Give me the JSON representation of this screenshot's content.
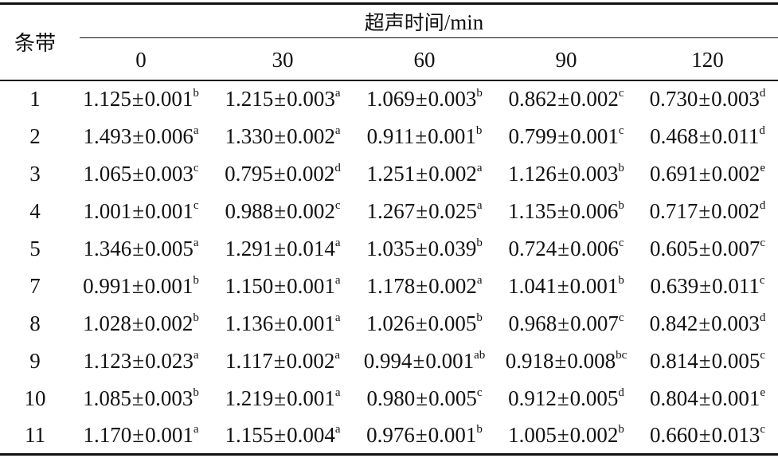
{
  "header": {
    "stub": "条带",
    "group_cjk": "超声时间",
    "group_unit": "/min",
    "columns": [
      "0",
      "30",
      "60",
      "90",
      "120"
    ]
  },
  "rows": [
    {
      "label": "1",
      "cells": [
        {
          "mean": "1.125",
          "sd": "0.001",
          "sup": "b"
        },
        {
          "mean": "1.215",
          "sd": "0.003",
          "sup": "a"
        },
        {
          "mean": "1.069",
          "sd": "0.003",
          "sup": "b"
        },
        {
          "mean": "0.862",
          "sd": "0.002",
          "sup": "c"
        },
        {
          "mean": "0.730",
          "sd": "0.003",
          "sup": "d"
        }
      ]
    },
    {
      "label": "2",
      "cells": [
        {
          "mean": "1.493",
          "sd": "0.006",
          "sup": "a"
        },
        {
          "mean": "1.330",
          "sd": "0.002",
          "sup": "a"
        },
        {
          "mean": "0.911",
          "sd": "0.001",
          "sup": "b"
        },
        {
          "mean": "0.799",
          "sd": "0.001",
          "sup": "c"
        },
        {
          "mean": "0.468",
          "sd": "0.011",
          "sup": "d"
        }
      ]
    },
    {
      "label": "3",
      "cells": [
        {
          "mean": "1.065",
          "sd": "0.003",
          "sup": "c"
        },
        {
          "mean": "0.795",
          "sd": "0.002",
          "sup": "d"
        },
        {
          "mean": "1.251",
          "sd": "0.002",
          "sup": "a"
        },
        {
          "mean": "1.126",
          "sd": "0.003",
          "sup": "b"
        },
        {
          "mean": "0.691",
          "sd": "0.002",
          "sup": "e"
        }
      ]
    },
    {
      "label": "4",
      "cells": [
        {
          "mean": "1.001",
          "sd": "0.001",
          "sup": "c"
        },
        {
          "mean": "0.988",
          "sd": "0.002",
          "sup": "c"
        },
        {
          "mean": "1.267",
          "sd": "0.025",
          "sup": "a"
        },
        {
          "mean": "1.135",
          "sd": "0.006",
          "sup": "b"
        },
        {
          "mean": "0.717",
          "sd": "0.002",
          "sup": "d"
        }
      ]
    },
    {
      "label": "5",
      "cells": [
        {
          "mean": "1.346",
          "sd": "0.005",
          "sup": "a"
        },
        {
          "mean": "1.291",
          "sd": "0.014",
          "sup": "a"
        },
        {
          "mean": "1.035",
          "sd": "0.039",
          "sup": "b"
        },
        {
          "mean": "0.724",
          "sd": "0.006",
          "sup": "c"
        },
        {
          "mean": "0.605",
          "sd": "0.007",
          "sup": "c"
        }
      ]
    },
    {
      "label": "7",
      "cells": [
        {
          "mean": "0.991",
          "sd": "0.001",
          "sup": "b"
        },
        {
          "mean": "1.150",
          "sd": "0.001",
          "sup": "a"
        },
        {
          "mean": "1.178",
          "sd": "0.002",
          "sup": "a"
        },
        {
          "mean": "1.041",
          "sd": "0.001",
          "sup": "b"
        },
        {
          "mean": "0.639",
          "sd": "0.011",
          "sup": "c"
        }
      ]
    },
    {
      "label": "8",
      "cells": [
        {
          "mean": "1.028",
          "sd": "0.002",
          "sup": "b"
        },
        {
          "mean": "1.136",
          "sd": "0.001",
          "sup": "a"
        },
        {
          "mean": "1.026",
          "sd": "0.005",
          "sup": "b"
        },
        {
          "mean": "0.968",
          "sd": "0.007",
          "sup": "c"
        },
        {
          "mean": "0.842",
          "sd": "0.003",
          "sup": "d"
        }
      ]
    },
    {
      "label": "9",
      "cells": [
        {
          "mean": "1.123",
          "sd": "0.023",
          "sup": "a"
        },
        {
          "mean": "1.117",
          "sd": "0.002",
          "sup": "a"
        },
        {
          "mean": "0.994",
          "sd": "0.001",
          "sup": "ab"
        },
        {
          "mean": "0.918",
          "sd": "0.008",
          "sup": "bc"
        },
        {
          "mean": "0.814",
          "sd": "0.005",
          "sup": "c"
        }
      ]
    },
    {
      "label": "10",
      "cells": [
        {
          "mean": "1.085",
          "sd": "0.003",
          "sup": "b"
        },
        {
          "mean": "1.219",
          "sd": "0.001",
          "sup": "a"
        },
        {
          "mean": "0.980",
          "sd": "0.005",
          "sup": "c"
        },
        {
          "mean": "0.912",
          "sd": "0.005",
          "sup": "d"
        },
        {
          "mean": "0.804",
          "sd": "0.001",
          "sup": "e"
        }
      ]
    },
    {
      "label": "11",
      "cells": [
        {
          "mean": "1.170",
          "sd": "0.001",
          "sup": "a"
        },
        {
          "mean": "1.155",
          "sd": "0.004",
          "sup": "a"
        },
        {
          "mean": "0.976",
          "sd": "0.001",
          "sup": "b"
        },
        {
          "mean": "1.005",
          "sd": "0.002",
          "sup": "b"
        },
        {
          "mean": "0.660",
          "sd": "0.013",
          "sup": "c"
        }
      ]
    }
  ]
}
